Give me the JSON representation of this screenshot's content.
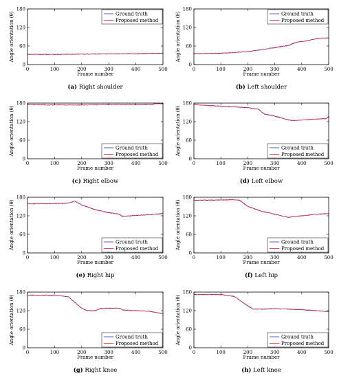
{
  "figure": {
    "legend_entries": [
      "Ground truth",
      "Proposed method"
    ],
    "colors": {
      "ground_truth": "#2b2bd6",
      "proposed": "#e0202c"
    }
  },
  "chart_data": [
    {
      "type": "line",
      "panel": "(a)",
      "caption_letter": "(a)",
      "caption_title": "Right shoulder",
      "xlabel": "Frame number",
      "ylabel": "Angle orientation (θ)",
      "xlim": [
        0,
        500
      ],
      "ylim": [
        0,
        180
      ],
      "xticks": [
        0,
        100,
        200,
        300,
        400,
        500
      ],
      "yticks": [
        0,
        60,
        120,
        180
      ],
      "legend": "top-right",
      "series": [
        {
          "name": "Ground truth",
          "x": [
            0,
            100,
            200,
            300,
            400,
            450,
            500
          ],
          "y": [
            33,
            33,
            34,
            35,
            35,
            36,
            37
          ]
        },
        {
          "name": "Proposed method",
          "x": [
            0,
            100,
            200,
            300,
            400,
            450,
            500
          ],
          "y": [
            33,
            33,
            34,
            35,
            35,
            36,
            37
          ]
        }
      ]
    },
    {
      "type": "line",
      "panel": "(b)",
      "caption_letter": "(b)",
      "caption_title": "Left shoulder",
      "xlabel": "Frame number",
      "ylabel": "Angle orientation (θ)",
      "xlim": [
        0,
        500
      ],
      "ylim": [
        0,
        180
      ],
      "xticks": [
        0,
        100,
        200,
        300,
        400,
        500
      ],
      "yticks": [
        0,
        60,
        120,
        180
      ],
      "legend": "top-right",
      "series": [
        {
          "name": "Ground truth",
          "x": [
            0,
            100,
            150,
            200,
            250,
            300,
            350,
            380,
            420,
            460,
            500
          ],
          "y": [
            35,
            37,
            39,
            42,
            48,
            55,
            62,
            72,
            77,
            85,
            86
          ]
        },
        {
          "name": "Proposed method",
          "x": [
            0,
            100,
            150,
            200,
            250,
            300,
            350,
            380,
            420,
            460,
            500
          ],
          "y": [
            35,
            37,
            39,
            42,
            48,
            55,
            62,
            72,
            77,
            85,
            86
          ]
        }
      ]
    },
    {
      "type": "line",
      "panel": "(c)",
      "caption_letter": "(c)",
      "caption_title": "Right elbow",
      "xlabel": "Frame number",
      "ylabel": "Angle orientation (θ)",
      "xlim": [
        0,
        500
      ],
      "ylim": [
        0,
        180
      ],
      "xticks": [
        0,
        100,
        200,
        300,
        400,
        500
      ],
      "yticks": [
        0,
        60,
        120,
        180
      ],
      "legend": "bottom-right",
      "series": [
        {
          "name": "Ground truth",
          "x": [
            0,
            100,
            200,
            300,
            400,
            460,
            470,
            500
          ],
          "y": [
            175,
            174,
            174,
            175,
            175,
            175,
            178,
            178
          ]
        },
        {
          "name": "Proposed method",
          "x": [
            0,
            100,
            200,
            300,
            400,
            460,
            470,
            500
          ],
          "y": [
            175,
            174,
            174,
            175,
            175,
            175,
            178,
            178
          ]
        }
      ]
    },
    {
      "type": "line",
      "panel": "(d)",
      "caption_letter": "(d)",
      "caption_title": "Left elbow",
      "xlabel": "Frame number",
      "ylabel": "Angle orientation (θ)",
      "xlim": [
        0,
        500
      ],
      "ylim": [
        0,
        180
      ],
      "xticks": [
        0,
        100,
        200,
        300,
        400,
        500
      ],
      "yticks": [
        0,
        60,
        120,
        180
      ],
      "legend": "bottom-right",
      "series": [
        {
          "name": "Ground truth",
          "x": [
            0,
            50,
            100,
            150,
            200,
            240,
            260,
            300,
            340,
            360,
            400,
            450,
            490,
            500
          ],
          "y": [
            176,
            172,
            170,
            168,
            165,
            160,
            145,
            138,
            128,
            124,
            125,
            128,
            130,
            136
          ]
        },
        {
          "name": "Proposed method",
          "x": [
            0,
            50,
            100,
            150,
            200,
            240,
            260,
            300,
            340,
            360,
            400,
            450,
            490,
            500
          ],
          "y": [
            176,
            172,
            170,
            168,
            165,
            160,
            145,
            138,
            128,
            124,
            125,
            128,
            130,
            136
          ]
        }
      ]
    },
    {
      "type": "line",
      "panel": "(e)",
      "caption_letter": "(e)",
      "caption_title": "Right hip",
      "xlabel": "Frame number",
      "ylabel": "Angle orientation (θ)",
      "xlim": [
        0,
        500
      ],
      "ylim": [
        0,
        180
      ],
      "xticks": [
        0,
        100,
        200,
        300,
        400,
        500
      ],
      "yticks": [
        0,
        60,
        120,
        180
      ],
      "legend": "bottom-right",
      "series": [
        {
          "name": "Ground truth",
          "x": [
            0,
            100,
            150,
            175,
            200,
            250,
            300,
            340,
            350,
            400,
            450,
            500
          ],
          "y": [
            159,
            159,
            161,
            167,
            155,
            140,
            130,
            125,
            118,
            121,
            124,
            127
          ]
        },
        {
          "name": "Proposed method",
          "x": [
            0,
            100,
            150,
            175,
            200,
            250,
            300,
            340,
            350,
            400,
            450,
            500
          ],
          "y": [
            159,
            159,
            161,
            167,
            155,
            140,
            130,
            125,
            118,
            121,
            124,
            127
          ]
        }
      ]
    },
    {
      "type": "line",
      "panel": "(f)",
      "caption_letter": "(f)",
      "caption_title": "Left hip",
      "xlabel": "Frame number",
      "ylabel": "Angle orientation (θ)",
      "xlim": [
        0,
        500
      ],
      "ylim": [
        0,
        180
      ],
      "xticks": [
        0,
        100,
        200,
        300,
        400,
        500
      ],
      "yticks": [
        0,
        60,
        120,
        180
      ],
      "legend": "bottom-right",
      "series": [
        {
          "name": "Ground truth",
          "x": [
            0,
            100,
            150,
            170,
            200,
            250,
            300,
            350,
            400,
            450,
            500
          ],
          "y": [
            170,
            171,
            172,
            170,
            150,
            135,
            125,
            115,
            120,
            125,
            127
          ]
        },
        {
          "name": "Proposed method",
          "x": [
            0,
            100,
            150,
            170,
            200,
            250,
            300,
            350,
            400,
            450,
            500
          ],
          "y": [
            170,
            171,
            172,
            170,
            150,
            135,
            125,
            115,
            120,
            125,
            127
          ]
        }
      ]
    },
    {
      "type": "line",
      "panel": "(g)",
      "caption_letter": "(g)",
      "caption_title": "Right knee",
      "xlabel": "Frame number",
      "ylabel": "Angle orientation (θ)",
      "xlim": [
        0,
        500
      ],
      "ylim": [
        0,
        180
      ],
      "xticks": [
        0,
        100,
        200,
        300,
        400,
        500
      ],
      "yticks": [
        0,
        60,
        120,
        180
      ],
      "legend": "bottom-right",
      "series": [
        {
          "name": "Ground truth",
          "x": [
            0,
            100,
            150,
            200,
            220,
            250,
            270,
            300,
            340,
            350,
            400,
            450,
            500
          ],
          "y": [
            170,
            170,
            165,
            128,
            120,
            120,
            127,
            128,
            128,
            122,
            120,
            118,
            110
          ]
        },
        {
          "name": "Proposed method",
          "x": [
            0,
            100,
            150,
            200,
            220,
            250,
            270,
            300,
            340,
            350,
            400,
            450,
            500
          ],
          "y": [
            170,
            170,
            165,
            128,
            120,
            120,
            127,
            128,
            128,
            122,
            120,
            118,
            110
          ]
        }
      ]
    },
    {
      "type": "line",
      "panel": "(h)",
      "caption_letter": "(h)",
      "caption_title": "Left knee",
      "xlabel": "Frame number",
      "ylabel": "Angle orientation (θ)",
      "xlim": [
        0,
        500
      ],
      "ylim": [
        0,
        180
      ],
      "xticks": [
        0,
        100,
        200,
        300,
        400,
        500
      ],
      "yticks": [
        0,
        60,
        120,
        180
      ],
      "legend": "bottom-right",
      "series": [
        {
          "name": "Ground truth",
          "x": [
            0,
            100,
            150,
            200,
            220,
            250,
            300,
            350,
            400,
            450,
            500
          ],
          "y": [
            172,
            172,
            166,
            135,
            125,
            125,
            126,
            125,
            123,
            120,
            117
          ]
        },
        {
          "name": "Proposed method",
          "x": [
            0,
            100,
            150,
            200,
            220,
            250,
            300,
            350,
            400,
            450,
            500
          ],
          "y": [
            172,
            172,
            166,
            135,
            125,
            125,
            126,
            125,
            123,
            120,
            117
          ]
        }
      ]
    }
  ]
}
